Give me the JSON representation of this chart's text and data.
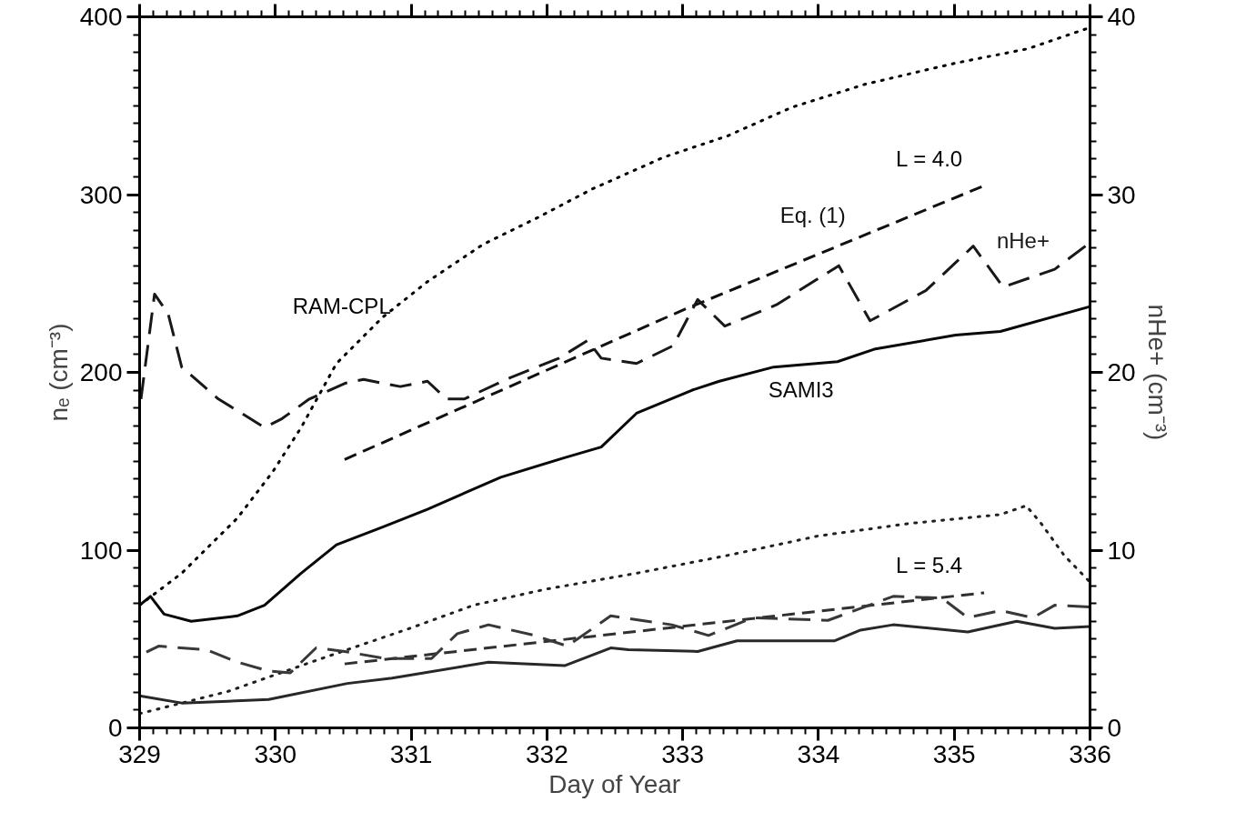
{
  "chart_data": {
    "type": "line",
    "xlabel": "Day of Year",
    "ylabel": "nₑ (cm⁻³)",
    "y2label": "nHe+ (cm⁻³)",
    "xlim": [
      329,
      336
    ],
    "xticks": [
      329,
      330,
      331,
      332,
      333,
      334,
      335,
      336
    ],
    "ylim": [
      0,
      400
    ],
    "yticks": [
      0,
      100,
      200,
      300,
      400
    ],
    "y2lim": [
      0,
      40
    ],
    "y2ticks": [
      0,
      10,
      20,
      30,
      40
    ],
    "grid": false,
    "series": [
      {
        "name": "RAM-CPL",
        "color": "#000000",
        "line_style": "dotted",
        "x": [
          329,
          329.31,
          329.72,
          329.98,
          330.19,
          330.45,
          330.79,
          331.12,
          331.53,
          331.93,
          332.33,
          332.86,
          333.33,
          333.8,
          334.34,
          335.01,
          335.54,
          336
        ],
        "values": [
          69,
          87,
          118,
          144,
          169,
          205,
          231,
          251,
          272,
          287,
          303,
          321,
          333,
          349,
          362,
          374,
          382,
          394
        ]
      },
      {
        "name": "SAMI3",
        "color": "#080808",
        "line_style": "solid",
        "x": [
          329,
          329.08,
          329.18,
          329.38,
          329.72,
          329.92,
          330.19,
          330.45,
          330.79,
          331.12,
          331.66,
          332.13,
          332.4,
          332.66,
          333.07,
          333.27,
          333.67,
          334.14,
          334.41,
          335.01,
          335.34,
          336
        ],
        "values": [
          69,
          74,
          64,
          60,
          63,
          69,
          87,
          103,
          113,
          123,
          141,
          152,
          158,
          177,
          190,
          195,
          203,
          206,
          213,
          221,
          223,
          237
        ]
      },
      {
        "name": "Eq. (1)",
        "color": "#101010",
        "line_style": "dashed",
        "x": [
          330.51,
          333,
          335.22
        ],
        "values": [
          151,
          235,
          305
        ]
      },
      {
        "name": "nHe+",
        "color": "#181818",
        "line_style": "dashed",
        "axis": "y2",
        "x": [
          329.01,
          329.11,
          329.21,
          329.31,
          329.58,
          329.92,
          330.05,
          330.25,
          330.52,
          330.65,
          330.92,
          331.12,
          331.26,
          331.39,
          331.73,
          332.09,
          332.3,
          332.4,
          332.66,
          332.93,
          333.11,
          333.31,
          333.69,
          334.15,
          334.38,
          334.79,
          335.14,
          335.36,
          335.74,
          336
        ],
        "values": [
          18.5,
          24.4,
          23.3,
          20.3,
          18.5,
          16.9,
          17.4,
          18.5,
          19.4,
          19.6,
          19.2,
          19.5,
          18.5,
          18.5,
          19.7,
          20.8,
          21.8,
          20.8,
          20.5,
          21.5,
          24.1,
          22.6,
          23.8,
          26.0,
          22.9,
          24.6,
          27.1,
          24.8,
          25.8,
          27.3
        ]
      },
      {
        "color": "#202020",
        "line_style": "dotted",
        "x": [
          329,
          329.65,
          330.32,
          330.99,
          331.46,
          331.99,
          332.66,
          333.33,
          334,
          334.67,
          335.34,
          335.53,
          335.64,
          335.81,
          336
        ],
        "values": [
          8,
          20.5,
          38.5,
          56,
          69,
          78,
          87,
          97,
          108,
          115,
          120,
          125,
          115,
          97,
          82
        ]
      },
      {
        "color": "#282828",
        "line_style": "solid",
        "x": [
          329,
          329.31,
          329.65,
          329.95,
          330.53,
          330.86,
          331.57,
          332.13,
          332.47,
          332.6,
          333.11,
          333.4,
          334.12,
          334.31,
          334.55,
          335.1,
          335.46,
          335.74,
          336
        ],
        "values": [
          18,
          14,
          15,
          16,
          25,
          28,
          37,
          35,
          45,
          44,
          43,
          49,
          49,
          55,
          58,
          54,
          60,
          56,
          57
        ]
      },
      {
        "color": "#303030",
        "line_style": "dashed",
        "x": [
          330.51,
          335.22
        ],
        "values": [
          36,
          76
        ]
      },
      {
        "color": "#383838",
        "line_style": "dashed",
        "axis": "y2",
        "x": [
          329.05,
          329.14,
          329.49,
          329.72,
          329.95,
          330.11,
          330.3,
          330.51,
          330.81,
          331.15,
          331.34,
          331.57,
          331.91,
          332.15,
          332.47,
          332.92,
          333.19,
          333.52,
          334.07,
          334.55,
          334.91,
          335.1,
          335.34,
          335.58,
          335.74,
          336
        ],
        "values": [
          4.26,
          4.6,
          4.4,
          3.7,
          3.2,
          3.1,
          4.5,
          4.3,
          3.9,
          3.9,
          5.3,
          5.8,
          5.2,
          4.6,
          6.3,
          5.8,
          5.2,
          6.2,
          6.05,
          7.4,
          7.3,
          6.2,
          6.6,
          6.2,
          6.9,
          6.8
        ]
      }
    ],
    "annotations": [
      "L = 4.0",
      "L = 5.4"
    ]
  }
}
